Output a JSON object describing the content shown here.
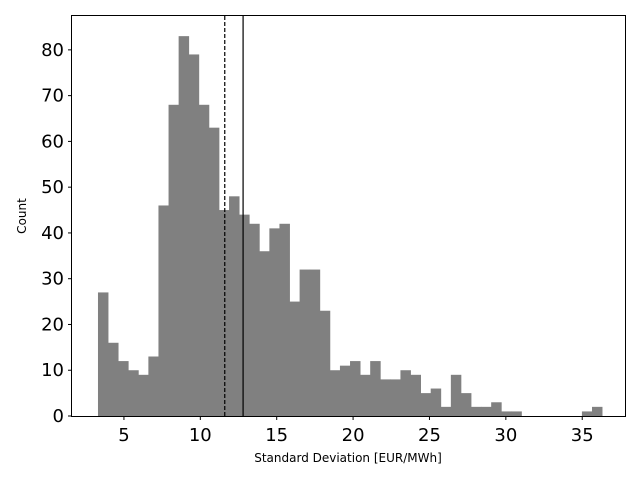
{
  "chart_data": {
    "type": "histogram",
    "title": "",
    "xlabel": "Standard Deviation [EUR/MWh]",
    "ylabel": "Count",
    "xlim": [
      1.6,
      37.8
    ],
    "ylim": [
      0,
      87.4
    ],
    "xticks": [
      5,
      10,
      15,
      20,
      25,
      30,
      35
    ],
    "yticks": [
      0,
      10,
      20,
      30,
      40,
      50,
      60,
      70,
      80
    ],
    "grid": false,
    "legend": "none",
    "bar_color": "#808080",
    "bin_start": 3.3,
    "bin_width": 0.66,
    "values": [
      27,
      16,
      12,
      10,
      9,
      13,
      46,
      68,
      83,
      79,
      68,
      63,
      45,
      48,
      44,
      42,
      36,
      41,
      42,
      25,
      32,
      32,
      23,
      10,
      11,
      12,
      9,
      12,
      8,
      8,
      10,
      9,
      5,
      6,
      2,
      9,
      5,
      2,
      2,
      3,
      1,
      1,
      0,
      0,
      0,
      0,
      0,
      0,
      1,
      2
    ],
    "vlines": [
      {
        "x": 11.6,
        "style": "dashed",
        "color": "#000000"
      },
      {
        "x": 12.8,
        "style": "solid",
        "color": "#000000"
      }
    ]
  }
}
